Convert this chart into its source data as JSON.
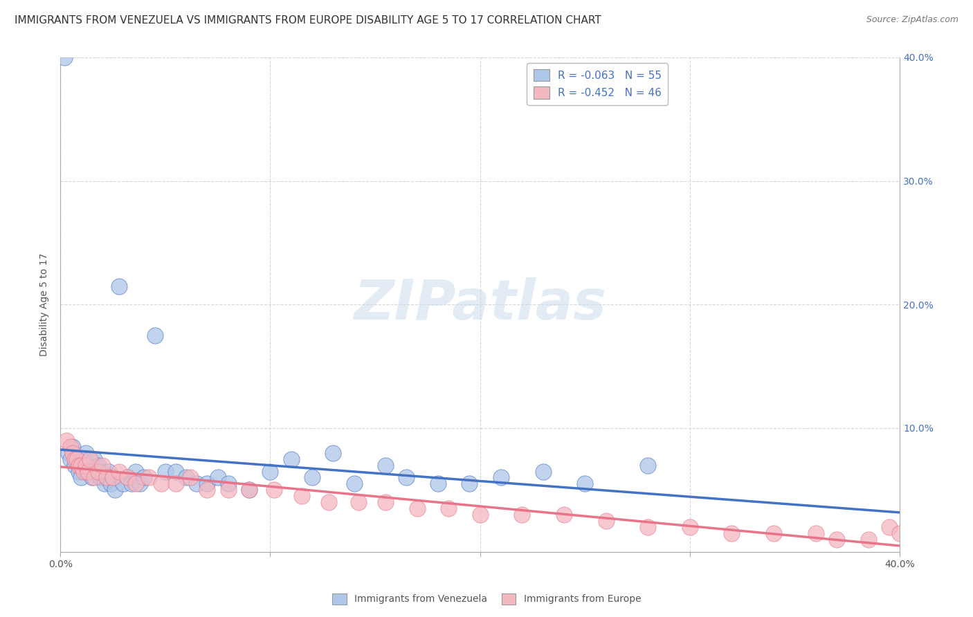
{
  "title": "IMMIGRANTS FROM VENEZUELA VS IMMIGRANTS FROM EUROPE DISABILITY AGE 5 TO 17 CORRELATION CHART",
  "source": "Source: ZipAtlas.com",
  "ylabel": "Disability Age 5 to 17",
  "xlim": [
    0.0,
    0.4
  ],
  "ylim": [
    0.0,
    0.4
  ],
  "xticks": [
    0.0,
    0.1,
    0.2,
    0.3,
    0.4
  ],
  "yticks": [
    0.0,
    0.1,
    0.2,
    0.3,
    0.4
  ],
  "xtick_labels_show": [
    "0.0%",
    "",
    "",
    "",
    "40.0%"
  ],
  "ytick_labels_right": [
    "",
    "10.0%",
    "20.0%",
    "30.0%",
    "40.0%"
  ],
  "venezuela_color": "#aec6e8",
  "europe_color": "#f4b8c1",
  "venezuela_line_color": "#4472c4",
  "europe_line_color": "#e8748a",
  "legend_box_color_venezuela": "#aec6e8",
  "legend_box_color_europe": "#f4b8c1",
  "legend_text_color": "#4472c4",
  "R_venezuela": -0.063,
  "N_venezuela": 55,
  "R_europe": -0.452,
  "N_europe": 46,
  "watermark_text": "ZIPatlas",
  "background_color": "#ffffff",
  "grid_color": "#cccccc",
  "title_fontsize": 11,
  "axis_label_fontsize": 10,
  "tick_fontsize": 10,
  "venezuela_scatter_x": [
    0.002,
    0.004,
    0.005,
    0.006,
    0.007,
    0.008,
    0.009,
    0.01,
    0.01,
    0.011,
    0.012,
    0.012,
    0.013,
    0.014,
    0.015,
    0.016,
    0.017,
    0.018,
    0.019,
    0.02,
    0.021,
    0.022,
    0.023,
    0.024,
    0.025,
    0.026,
    0.028,
    0.03,
    0.032,
    0.034,
    0.036,
    0.038,
    0.04,
    0.045,
    0.05,
    0.055,
    0.06,
    0.065,
    0.07,
    0.075,
    0.08,
    0.09,
    0.1,
    0.11,
    0.12,
    0.13,
    0.14,
    0.155,
    0.165,
    0.18,
    0.195,
    0.21,
    0.23,
    0.25,
    0.28
  ],
  "venezuela_scatter_y": [
    0.4,
    0.08,
    0.075,
    0.085,
    0.07,
    0.075,
    0.065,
    0.07,
    0.06,
    0.075,
    0.065,
    0.08,
    0.07,
    0.065,
    0.06,
    0.075,
    0.065,
    0.07,
    0.06,
    0.065,
    0.055,
    0.06,
    0.065,
    0.055,
    0.06,
    0.05,
    0.215,
    0.055,
    0.06,
    0.055,
    0.065,
    0.055,
    0.06,
    0.175,
    0.065,
    0.065,
    0.06,
    0.055,
    0.055,
    0.06,
    0.055,
    0.05,
    0.065,
    0.075,
    0.06,
    0.08,
    0.055,
    0.07,
    0.06,
    0.055,
    0.055,
    0.06,
    0.065,
    0.055,
    0.07
  ],
  "europe_scatter_x": [
    0.003,
    0.005,
    0.006,
    0.007,
    0.008,
    0.009,
    0.01,
    0.011,
    0.012,
    0.013,
    0.014,
    0.016,
    0.018,
    0.02,
    0.022,
    0.025,
    0.028,
    0.032,
    0.036,
    0.042,
    0.048,
    0.055,
    0.062,
    0.07,
    0.08,
    0.09,
    0.102,
    0.115,
    0.128,
    0.142,
    0.155,
    0.17,
    0.185,
    0.2,
    0.22,
    0.24,
    0.26,
    0.28,
    0.3,
    0.32,
    0.34,
    0.36,
    0.37,
    0.385,
    0.395,
    0.4
  ],
  "europe_scatter_y": [
    0.09,
    0.085,
    0.08,
    0.075,
    0.075,
    0.07,
    0.07,
    0.065,
    0.07,
    0.065,
    0.075,
    0.06,
    0.065,
    0.07,
    0.06,
    0.06,
    0.065,
    0.06,
    0.055,
    0.06,
    0.055,
    0.055,
    0.06,
    0.05,
    0.05,
    0.05,
    0.05,
    0.045,
    0.04,
    0.04,
    0.04,
    0.035,
    0.035,
    0.03,
    0.03,
    0.03,
    0.025,
    0.02,
    0.02,
    0.015,
    0.015,
    0.015,
    0.01,
    0.01,
    0.02,
    0.015
  ]
}
